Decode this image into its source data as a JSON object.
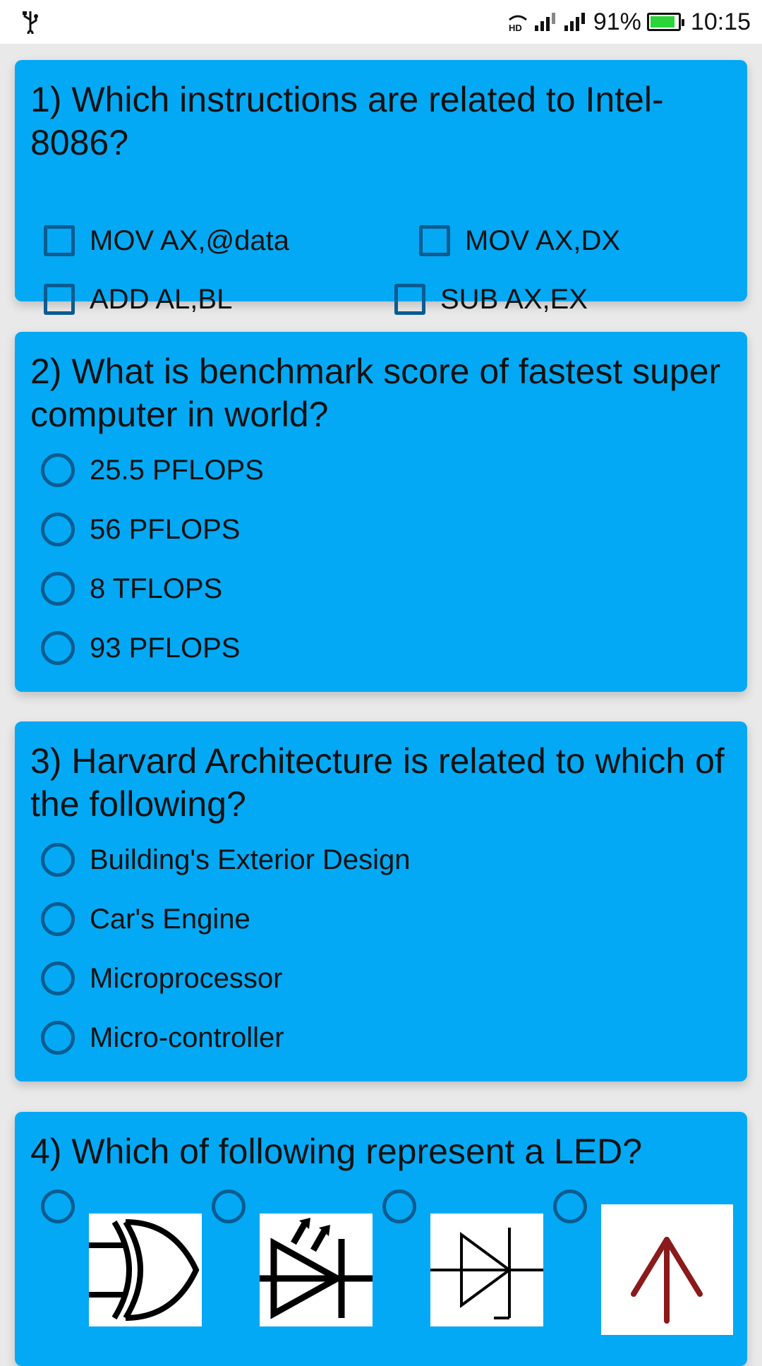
{
  "status_bar": {
    "usb_icon": "usb-icon",
    "hd_icon": "hd-voice-icon",
    "signal_icons": [
      "signal-sim1-icon",
      "signal-sim2-icon"
    ],
    "battery_percent": "91%",
    "battery_level": 0.91,
    "time": "10:15"
  },
  "colors": {
    "card": "#03a9f4",
    "control": "#0a5c91",
    "battery": "#2bd43a"
  },
  "questions": [
    {
      "title": "1) Which instructions are related to Intel-8086?",
      "type": "checkbox",
      "options": [
        "MOV AX,@data",
        "MOV AX,DX",
        "ADD AL,BL",
        "SUB AX,EX"
      ]
    },
    {
      "title": "2) What is benchmark score of fastest super computer in world?",
      "type": "radio",
      "options": [
        "25.5 PFLOPS",
        "56 PFLOPS",
        "8 TFLOPS",
        "93 PFLOPS"
      ]
    },
    {
      "title": "3) Harvard Architecture is related to which of the following?",
      "type": "radio",
      "options": [
        "Building's Exterior Design",
        "Car's Engine",
        "Microprocessor",
        "Micro-controller"
      ]
    },
    {
      "title": "4) Which of following represent a LED?",
      "type": "radio-image",
      "options": [
        "xor-gate-symbol",
        "led-symbol",
        "zener-diode-symbol",
        "up-arrow-symbol"
      ]
    }
  ]
}
